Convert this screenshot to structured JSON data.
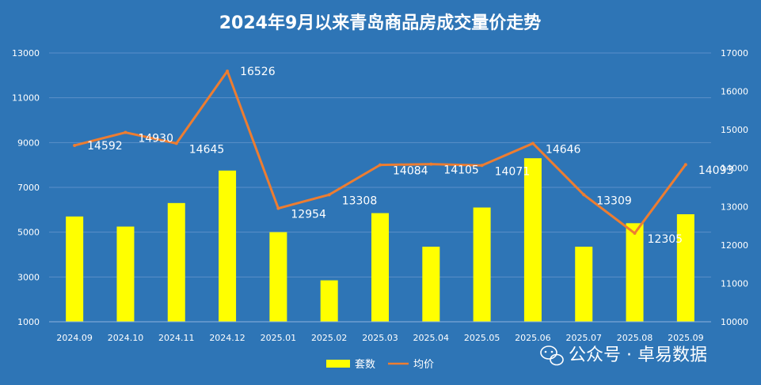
{
  "chart_data": {
    "type": "bar",
    "title": "2024年9月以来青岛商品房成交量价走势",
    "categories": [
      "2024.09",
      "2024.10",
      "2024.11",
      "2024.12",
      "2025.01",
      "2025.02",
      "2025.03",
      "2025.04",
      "2025.05",
      "2025.06",
      "2025.07",
      "2025.08",
      "2025.09"
    ],
    "series": [
      {
        "name": "套数",
        "type": "bar",
        "axis": "left",
        "color": "#ffff00",
        "values": [
          5700,
          5250,
          6300,
          7750,
          5000,
          2850,
          5850,
          4350,
          6100,
          8300,
          4350,
          5400,
          5800
        ]
      },
      {
        "name": "均价",
        "type": "line",
        "axis": "right",
        "color": "#ed7d31",
        "values": [
          14592,
          14930,
          14645,
          16526,
          12954,
          13308,
          14084,
          14105,
          14071,
          14646,
          13309,
          12305,
          14093
        ]
      }
    ],
    "y_left": {
      "range": [
        1000,
        13000
      ],
      "ticks": [
        1000,
        3000,
        5000,
        7000,
        9000,
        11000,
        13000
      ]
    },
    "y_right": {
      "range": [
        10000,
        17000
      ],
      "ticks": [
        10000,
        11000,
        12000,
        13000,
        14000,
        15000,
        16000,
        17000
      ]
    },
    "grid": true,
    "legend_position": "bottom",
    "background": "#2e75b6"
  },
  "watermark": {
    "text": "公众号 · 卓易数据",
    "icon": "wechat-icon"
  }
}
